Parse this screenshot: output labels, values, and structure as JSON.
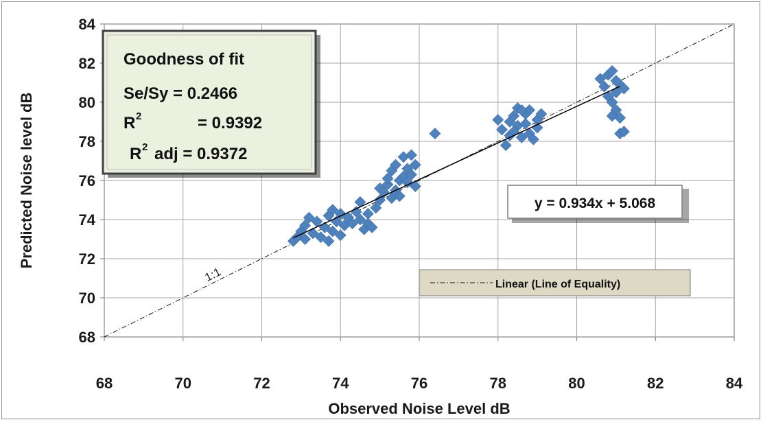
{
  "chart_data": {
    "type": "scatter",
    "xlabel": "Observed Noise Level dB",
    "ylabel": "Predicted Noise level dB",
    "xlim": [
      68,
      84
    ],
    "ylim": [
      68,
      84
    ],
    "xticks": [
      68,
      70,
      72,
      74,
      76,
      78,
      80,
      82,
      84
    ],
    "yticks": [
      68,
      70,
      72,
      74,
      76,
      78,
      80,
      82,
      84
    ],
    "grid": true,
    "marker_color": "#4f81bd",
    "fit_line": {
      "label": "y = 0.934x + 5.068",
      "slope": 0.934,
      "intercept": 5.068,
      "x_range": [
        72.8,
        81.1
      ]
    },
    "equality_line": {
      "legend": "Linear (Line of Equality)",
      "annotation": "1:1",
      "x_range": [
        68,
        84
      ]
    },
    "goodness_of_fit": {
      "title": "Goodness of fit",
      "se_sy": "Se/Sy  =  0.2466",
      "r2_label": "R",
      "r2_value": "= 0.9392",
      "r2adj_label": "R",
      "r2adj_value": "adj = 0.9372",
      "superscript": "2",
      "background": "#ebf1de"
    },
    "series": [
      {
        "points": [
          [
            72.8,
            72.9
          ],
          [
            72.9,
            73.1
          ],
          [
            73.0,
            73.4
          ],
          [
            73.1,
            73.0
          ],
          [
            73.1,
            73.7
          ],
          [
            73.2,
            74.1
          ],
          [
            73.3,
            73.3
          ],
          [
            73.4,
            73.9
          ],
          [
            73.5,
            73.1
          ],
          [
            73.6,
            73.6
          ],
          [
            73.7,
            74.2
          ],
          [
            73.7,
            72.9
          ],
          [
            73.8,
            73.4
          ],
          [
            73.8,
            74.5
          ],
          [
            73.9,
            73.9
          ],
          [
            74.0,
            74.3
          ],
          [
            74.0,
            73.2
          ],
          [
            74.1,
            73.7
          ],
          [
            74.2,
            74.1
          ],
          [
            74.3,
            73.8
          ],
          [
            74.4,
            74.4
          ],
          [
            74.5,
            74.9
          ],
          [
            74.5,
            74.0
          ],
          [
            74.6,
            73.5
          ],
          [
            74.7,
            74.3
          ],
          [
            74.7,
            73.8
          ],
          [
            74.8,
            73.6
          ],
          [
            74.9,
            74.6
          ],
          [
            75.0,
            75.6
          ],
          [
            75.0,
            75.0
          ],
          [
            75.1,
            75.4
          ],
          [
            75.2,
            75.8
          ],
          [
            75.3,
            75.1
          ],
          [
            75.3,
            76.5
          ],
          [
            75.4,
            75.5
          ],
          [
            75.5,
            76.0
          ],
          [
            75.5,
            75.2
          ],
          [
            75.6,
            76.2
          ],
          [
            75.6,
            77.2
          ],
          [
            75.7,
            76.6
          ],
          [
            75.7,
            75.9
          ],
          [
            75.8,
            77.3
          ],
          [
            75.8,
            76.3
          ],
          [
            75.9,
            75.7
          ],
          [
            75.9,
            76.8
          ],
          [
            75.4,
            76.8
          ],
          [
            75.2,
            76.1
          ],
          [
            76.4,
            78.4
          ],
          [
            78.0,
            79.1
          ],
          [
            78.1,
            78.6
          ],
          [
            78.2,
            77.8
          ],
          [
            78.3,
            79.0
          ],
          [
            78.3,
            78.3
          ],
          [
            78.4,
            79.3
          ],
          [
            78.5,
            78.8
          ],
          [
            78.5,
            79.7
          ],
          [
            78.6,
            78.2
          ],
          [
            78.7,
            78.9
          ],
          [
            78.7,
            79.4
          ],
          [
            78.8,
            79.6
          ],
          [
            78.8,
            78.4
          ],
          [
            78.9,
            78.1
          ],
          [
            79.0,
            79.1
          ],
          [
            79.1,
            79.4
          ],
          [
            79.0,
            78.7
          ],
          [
            78.6,
            79.6
          ],
          [
            78.4,
            78.5
          ],
          [
            80.6,
            81.2
          ],
          [
            80.7,
            80.8
          ],
          [
            80.8,
            81.4
          ],
          [
            80.8,
            80.3
          ],
          [
            80.9,
            80.0
          ],
          [
            80.9,
            81.6
          ],
          [
            81.0,
            79.6
          ],
          [
            80.9,
            79.3
          ],
          [
            81.0,
            80.5
          ],
          [
            81.1,
            80.9
          ],
          [
            81.1,
            79.2
          ],
          [
            81.2,
            80.7
          ],
          [
            81.1,
            78.4
          ],
          [
            81.2,
            78.5
          ],
          [
            81.0,
            81.1
          ]
        ]
      }
    ]
  }
}
